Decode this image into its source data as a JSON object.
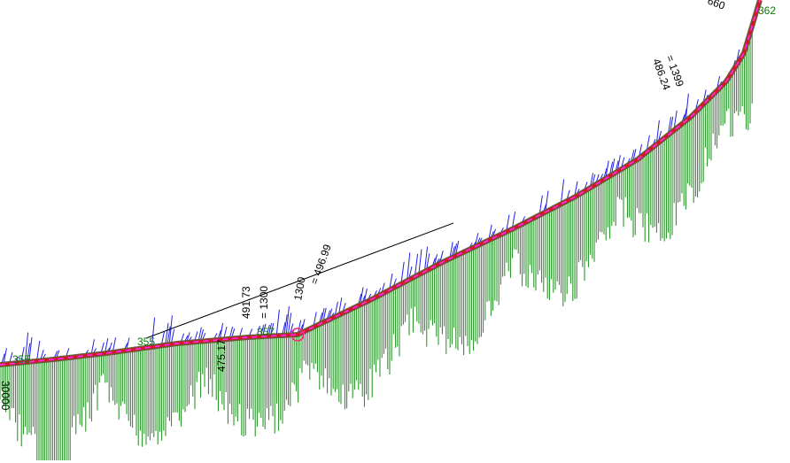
{
  "labels": {
    "green": [
      "355",
      "355",
      "357",
      "362"
    ],
    "black": [
      "30000",
      "491.73",
      "= 1300",
      "1300",
      "= 496.99",
      "486.24",
      "= 1399",
      "660",
      "475.17"
    ]
  }
}
